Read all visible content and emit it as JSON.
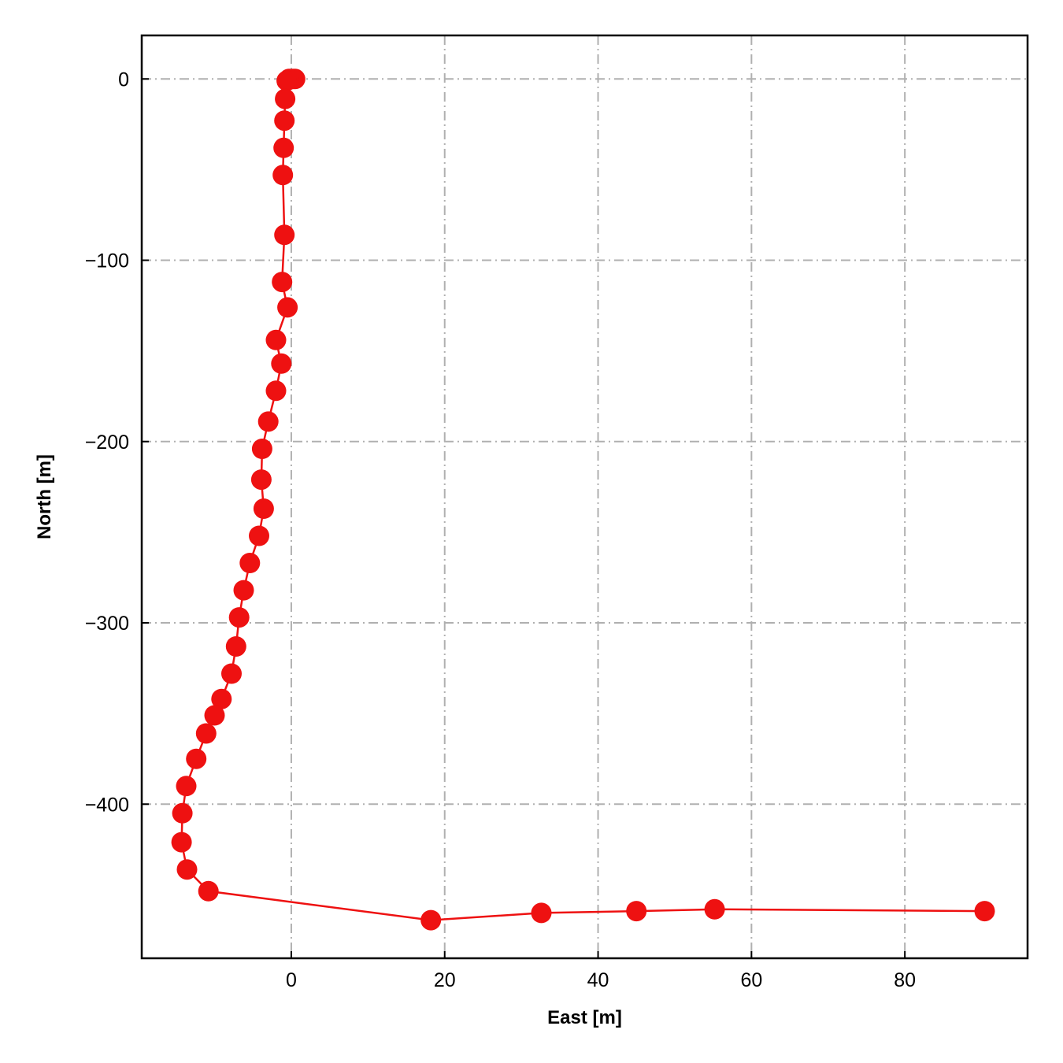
{
  "chart_data": {
    "type": "line",
    "xlabel": "East [m]",
    "ylabel": "North [m]",
    "xlim": [
      -19.5,
      96
    ],
    "ylim": [
      -485,
      24
    ],
    "xticks": [
      0,
      20,
      40,
      60,
      80
    ],
    "yticks": [
      0,
      -100,
      -200,
      -300,
      -400
    ],
    "xtick_labels": [
      "0",
      "20",
      "40",
      "60",
      "80"
    ],
    "ytick_labels": [
      "0",
      "−100",
      "−200",
      "−300",
      "−400"
    ],
    "grid": true,
    "series": [
      {
        "color": "#ee1111",
        "marker": "circle",
        "points": [
          {
            "x": 0.5,
            "y": 0
          },
          {
            "x": 0.2,
            "y": 0
          },
          {
            "x": -0.3,
            "y": 0
          },
          {
            "x": -0.6,
            "y": -1
          },
          {
            "x": -0.8,
            "y": -11
          },
          {
            "x": -0.9,
            "y": -23
          },
          {
            "x": -1.0,
            "y": -38
          },
          {
            "x": -1.1,
            "y": -53
          },
          {
            "x": -0.9,
            "y": -86
          },
          {
            "x": -1.2,
            "y": -112
          },
          {
            "x": -0.5,
            "y": -126
          },
          {
            "x": -2.0,
            "y": -144
          },
          {
            "x": -1.3,
            "y": -157
          },
          {
            "x": -2.0,
            "y": -172
          },
          {
            "x": -3.0,
            "y": -189
          },
          {
            "x": -3.8,
            "y": -204
          },
          {
            "x": -3.9,
            "y": -221
          },
          {
            "x": -3.6,
            "y": -237
          },
          {
            "x": -4.2,
            "y": -252
          },
          {
            "x": -5.4,
            "y": -267
          },
          {
            "x": -6.2,
            "y": -282
          },
          {
            "x": -6.8,
            "y": -297
          },
          {
            "x": -7.2,
            "y": -313
          },
          {
            "x": -7.8,
            "y": -328
          },
          {
            "x": -9.1,
            "y": -342
          },
          {
            "x": -10.0,
            "y": -351
          },
          {
            "x": -11.1,
            "y": -361
          },
          {
            "x": -12.4,
            "y": -375
          },
          {
            "x": -13.7,
            "y": -390
          },
          {
            "x": -14.2,
            "y": -405
          },
          {
            "x": -14.3,
            "y": -421
          },
          {
            "x": -13.6,
            "y": -436
          },
          {
            "x": -10.8,
            "y": -448
          },
          {
            "x": 18.2,
            "y": -464
          },
          {
            "x": 32.6,
            "y": -460
          },
          {
            "x": 45.0,
            "y": -459
          },
          {
            "x": 55.2,
            "y": -458
          },
          {
            "x": 90.4,
            "y": -459
          }
        ]
      }
    ]
  }
}
